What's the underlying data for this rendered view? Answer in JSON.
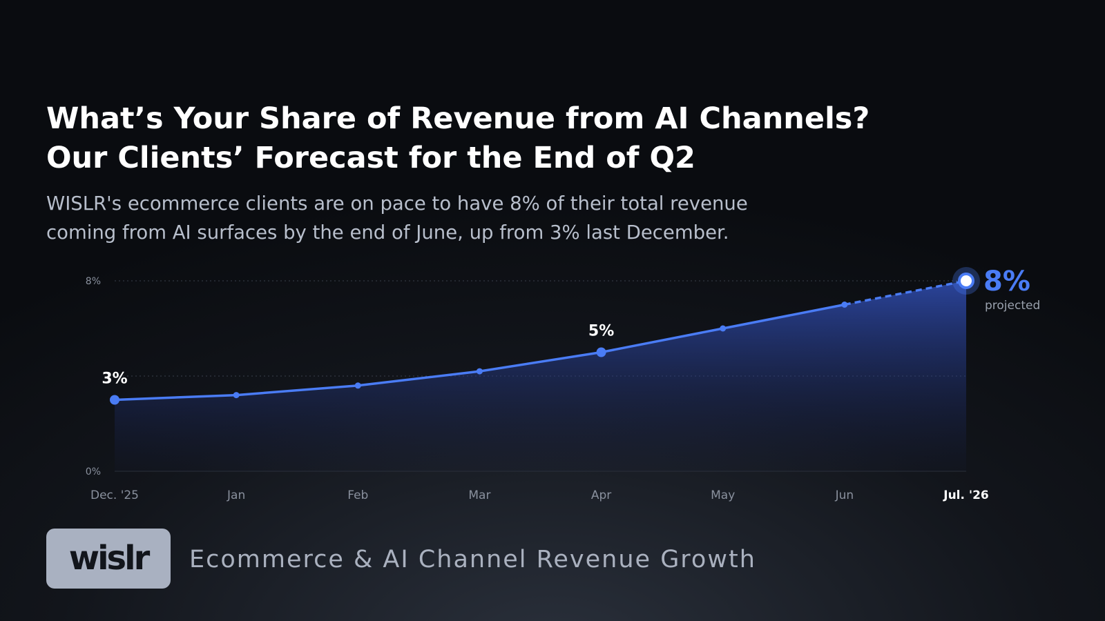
{
  "header": {
    "title_lines": [
      "What’s Your Share of Revenue from AI Channels?",
      "Our Clients’ Forecast for the End of Q2"
    ],
    "subtitle_lines": [
      "WISLR's ecommerce clients are on pace to have 8% of their total revenue",
      "coming from AI surfaces by the end of June, up from 3% last December."
    ]
  },
  "chart_data": {
    "type": "line",
    "categories": [
      "Dec. '25",
      "Jan",
      "Feb",
      "Mar",
      "Apr",
      "May",
      "Jun",
      "Jul. '26"
    ],
    "values": [
      3,
      3.2,
      3.6,
      4.2,
      5,
      6,
      7,
      8
    ],
    "value_labels": [
      "3%",
      null,
      null,
      null,
      "5%",
      null,
      null,
      "8%"
    ],
    "projected_index": 7,
    "annotation": "projected",
    "color": "#4a7cf5",
    "ylim": [
      0,
      8
    ],
    "yticks": [
      {
        "value": 0,
        "label": "0%"
      },
      {
        "value": 8,
        "label": "8%"
      }
    ],
    "grid_values": [
      4,
      8
    ],
    "grid": true
  },
  "footer": {
    "logo": "wislr",
    "tagline": "Ecommerce & AI Channel Revenue Growth"
  }
}
